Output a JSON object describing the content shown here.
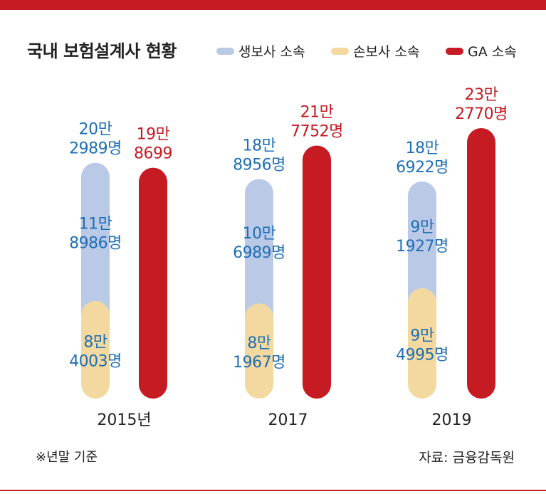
{
  "title": "국내 보험설계사 현황",
  "legend": [
    {
      "label": "생보사 소속",
      "color": "#b9c9e6"
    },
    {
      "label": "손보사 소속",
      "color": "#f3d9a0"
    },
    {
      "label": "GA 소속",
      "color": "#c61b22"
    }
  ],
  "note": "※년말 기준",
  "source": "자료: 금융감독원",
  "colors": {
    "accent": "#c61b22",
    "life_text": "#1f6fb5",
    "ga_text": "#c61b22"
  },
  "chart_data": {
    "type": "bar",
    "stacked": "life+nonlife stacked; GA separate",
    "categories": [
      "2015년",
      "2017",
      "2019"
    ],
    "series": [
      {
        "name": "생보사 소속",
        "values": [
          118986,
          106989,
          91927
        ],
        "labels": [
          [
            "11만",
            "8986명"
          ],
          [
            "10만",
            "6989명"
          ],
          [
            "9만",
            "1927명"
          ]
        ]
      },
      {
        "name": "손보사 소속",
        "values": [
          84003,
          81967,
          94995
        ],
        "labels": [
          [
            "8만",
            "4003명"
          ],
          [
            "8만",
            "1967명"
          ],
          [
            "9만",
            "4995명"
          ]
        ]
      },
      {
        "name": "GA 소속",
        "values": [
          198699,
          217752,
          232770
        ],
        "labels": [
          [
            "19만",
            "8699"
          ],
          [
            "21만",
            "7752명"
          ],
          [
            "23만",
            "2770명"
          ]
        ]
      }
    ],
    "totals": {
      "values": [
        202989,
        188956,
        186922
      ],
      "labels": [
        [
          "20만",
          "2989명"
        ],
        [
          "18만",
          "8956명"
        ],
        [
          "18만",
          "6922명"
        ]
      ]
    }
  }
}
